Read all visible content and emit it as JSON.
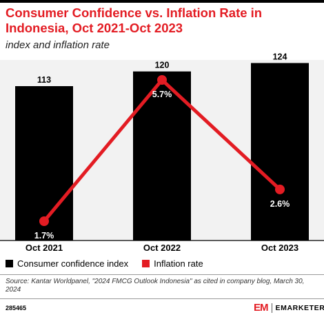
{
  "chart_data": {
    "type": "bar+line",
    "title": "Consumer Confidence vs. Inflation Rate in Indonesia, Oct 2021-Oct 2023",
    "subtitle": "index and inflation rate",
    "categories": [
      "Oct 2021",
      "Oct 2022",
      "Oct 2023"
    ],
    "series": [
      {
        "name": "Consumer confidence index",
        "kind": "bar",
        "color": "#000000",
        "values": [
          113,
          120,
          124
        ],
        "labels": [
          "113",
          "120",
          "124"
        ]
      },
      {
        "name": "Inflation rate",
        "kind": "line",
        "color": "#e31c23",
        "values": [
          1.7,
          5.7,
          2.6
        ],
        "labels": [
          "1.7%",
          "5.7%",
          "2.6%"
        ]
      }
    ],
    "legend_position": "bottom-left",
    "source": "Source: Kantar Worldpanel, \"2024 FMCG Outlook Indonesia\" as cited in company blog, March 30, 2024"
  },
  "footer": {
    "chart_id": "285465",
    "brand_mark": "EM",
    "brand_name": "EMARKETER"
  }
}
